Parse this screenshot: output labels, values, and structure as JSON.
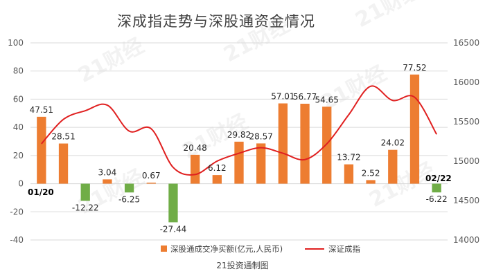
{
  "chart_data": {
    "type": "bar",
    "title": "深成指走势与深股通资金情况",
    "source": "21投资通制图",
    "watermark": "21财经",
    "left_axis": {
      "ylim": [
        -40,
        100
      ],
      "ticks": [
        "100",
        "80",
        "60",
        "40",
        "20",
        "0",
        "-20",
        "-40"
      ]
    },
    "right_axis": {
      "ylim": [
        14000,
        16500
      ],
      "ticks": [
        "16500",
        "16000",
        "15500",
        "15000",
        "14500",
        "14000"
      ]
    },
    "start_date_label": "01/20",
    "end_date_label": "02/22",
    "colors": {
      "positive_bar": "#ed7d31",
      "negative_bar": "#70ad47",
      "line": "#e02020",
      "grid": "#d9d9d9"
    },
    "series": [
      {
        "name": "深股通成交净买额(亿元,人民币)",
        "kind": "bar",
        "axis": "left",
        "values": [
          47.51,
          28.51,
          -12.22,
          3.04,
          -6.25,
          0.67,
          -27.44,
          20.48,
          6.12,
          29.82,
          28.57,
          57.01,
          56.77,
          54.65,
          13.72,
          2.52,
          24.02,
          77.52,
          -6.22
        ],
        "labels": [
          "47.51",
          "28.51",
          "-12.22",
          "3.04",
          "-6.25",
          "0.67",
          "-27.44",
          "20.48",
          "6.12",
          "29.82",
          "28.57",
          "57.01",
          "56.77",
          "54.65",
          "13.72",
          "2.52",
          "24.02",
          "77.52",
          "-6.22"
        ]
      },
      {
        "name": "深证成指",
        "kind": "line",
        "axis": "right",
        "values": [
          15220,
          15530,
          15640,
          15710,
          15380,
          15410,
          14920,
          14830,
          15000,
          15100,
          15170,
          15100,
          15020,
          15220,
          15590,
          15950,
          15770,
          15810,
          15340
        ]
      }
    ]
  }
}
